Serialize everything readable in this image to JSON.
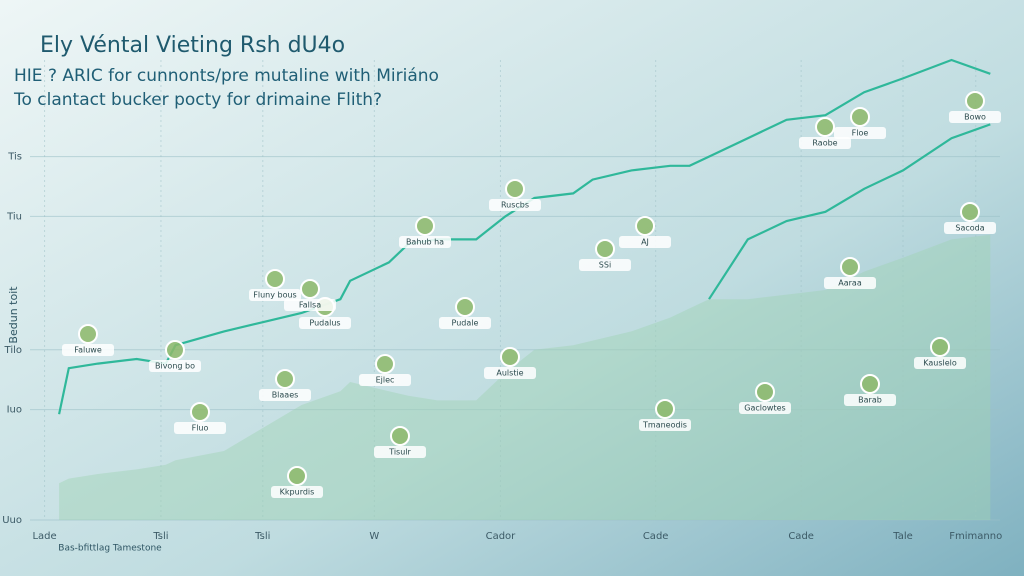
{
  "chart_data": {
    "type": "line",
    "title": "Ely Véntal Vieting Rsh dU4o",
    "subtitle": [
      "HIE ? ARIC for cunnonts/pre mutaline with Miriáno",
      "To clantact bucker pocty for drimaine Flith?"
    ],
    "y_label": "Bedun toit",
    "x_label": "Bas-bfittlag Tamestone",
    "x": [
      3,
      4,
      7,
      11,
      14,
      15,
      20,
      24,
      28,
      32,
      33,
      37,
      39,
      42,
      46,
      49,
      52,
      56,
      58,
      62,
      66,
      68,
      70,
      74,
      78,
      82,
      86,
      90,
      95,
      99
    ],
    "series": [
      {
        "color": "#2fb89a",
        "values": [
          23,
          33,
          34,
          35,
          34,
          38,
          41,
          43,
          45,
          48,
          52,
          56,
          60,
          61,
          61,
          66,
          70,
          71,
          74,
          76,
          77,
          77,
          79,
          83,
          87,
          88,
          93,
          96,
          100,
          97
        ]
      },
      {
        "color": "#2fb89a",
        "values": [
          null,
          null,
          null,
          null,
          null,
          null,
          null,
          null,
          null,
          null,
          null,
          null,
          null,
          null,
          null,
          null,
          null,
          null,
          null,
          null,
          null,
          null,
          48,
          61,
          65,
          67,
          72,
          76,
          83,
          86
        ]
      },
      {
        "color": "#9fd2b4",
        "fill": true,
        "values": [
          8,
          9,
          10,
          11,
          12,
          13,
          15,
          20,
          25,
          28,
          30,
          28,
          27,
          26,
          26,
          32,
          37,
          38,
          39,
          41,
          44,
          46,
          48,
          48,
          49,
          50,
          54,
          57,
          61,
          62
        ]
      }
    ],
    "xlim": [
      0,
      100
    ],
    "ylim": [
      0,
      100
    ],
    "xticks": [
      {
        "value": 1.5,
        "label": "Lade"
      },
      {
        "value": 13.5,
        "label": "Tsli"
      },
      {
        "value": 24,
        "label": "Tsli"
      },
      {
        "value": 35.5,
        "label": "W"
      },
      {
        "value": 48.5,
        "label": "Cador"
      },
      {
        "value": 64.5,
        "label": "Cade"
      },
      {
        "value": 79.5,
        "label": "Cade"
      },
      {
        "value": 90,
        "label": "Tale"
      },
      {
        "value": 97.5,
        "label": "Fmimanno"
      }
    ],
    "yticks": [
      {
        "value": 0,
        "label": "Uuo"
      },
      {
        "value": 24,
        "label": "Iuo"
      },
      {
        "value": 37,
        "label": "Tilo"
      },
      {
        "value": 66,
        "label": "Tiu"
      },
      {
        "value": 79,
        "label": "Tis"
      }
    ],
    "grid": true,
    "annotations": [
      "Fluny bous",
      "Pudalus",
      "Bahub ha",
      "Faluwe",
      "Bivong bo",
      "Pudale",
      "Ruscbs",
      "Fluo",
      "Blaaes",
      "Ejlec",
      "Aulstie",
      "Tisulr",
      "Kkpurdis",
      "AJ",
      "SSi",
      "Raobe",
      "Sacoda",
      "Bowo",
      "Aaraa",
      "Floe",
      "Fallsa",
      "Tmaneodis",
      "Gaclowtes",
      "Barab",
      "Kauslelo"
    ]
  }
}
